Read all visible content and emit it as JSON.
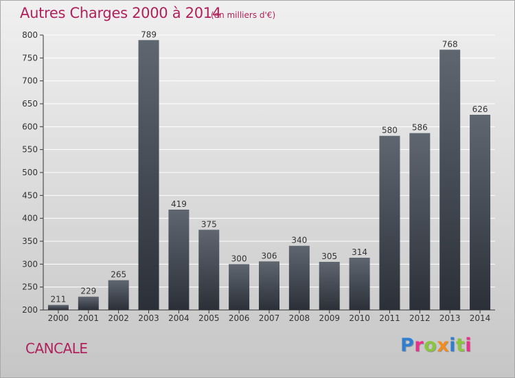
{
  "header": {
    "title": "Autres Charges 2000 à 2014",
    "subtitle": "(en milliers d'€)"
  },
  "footer": {
    "city": "CANCALE"
  },
  "logo": {
    "text": "Proxiti",
    "letter_colors": [
      "#2f7fd0",
      "#e8308a",
      "#8bc53f",
      "#f28c1e",
      "#2f7fd0",
      "#8bc53f",
      "#e8308a"
    ]
  },
  "colors": {
    "title": "#b0215a",
    "bar_top": "#5f6670",
    "bar_bottom": "#2b3038",
    "grid": "#ffffff",
    "text": "#333333"
  },
  "chart_data": {
    "type": "bar",
    "title": "Autres Charges 2000 à 2014",
    "subtitle": "(en milliers d'€)",
    "categories": [
      "2000",
      "2001",
      "2002",
      "2003",
      "2004",
      "2005",
      "2006",
      "2007",
      "2008",
      "2009",
      "2010",
      "2011",
      "2012",
      "2013",
      "2014"
    ],
    "values": [
      211,
      229,
      265,
      789,
      419,
      375,
      300,
      306,
      340,
      305,
      314,
      580,
      586,
      768,
      626
    ],
    "ylim": [
      200,
      800
    ],
    "yticks": [
      200,
      250,
      300,
      350,
      400,
      450,
      500,
      550,
      600,
      650,
      700,
      750,
      800
    ],
    "grid": "horizontal",
    "data_labels": true,
    "xlabel": "",
    "ylabel": ""
  }
}
